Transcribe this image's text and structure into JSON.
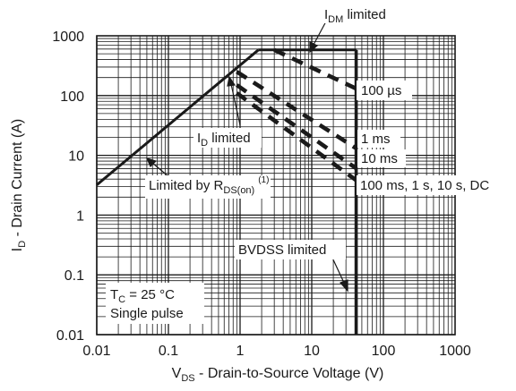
{
  "chart_data": {
    "type": "line",
    "title": "",
    "x_scale": "log",
    "y_scale": "log",
    "xlim": [
      0.01,
      1000
    ],
    "ylim": [
      0.01,
      1000
    ],
    "grid": true,
    "x_ticks": [
      "0.01",
      "0.1",
      "1",
      "10",
      "100",
      "1000"
    ],
    "y_ticks": [
      "0.01",
      "0.1",
      "1",
      "10",
      "100",
      "1000"
    ],
    "xlabel": {
      "main": "V",
      "sub": "DS",
      "rest": " - Drain-to-Source Voltage (V)"
    },
    "ylabel": {
      "main": "I",
      "sub": "D",
      "rest": " - Drain Current (A)"
    },
    "series": [
      {
        "name": "Limited by RDS(on)",
        "style": "solid",
        "x": [
          0.01,
          1.8
        ],
        "y": [
          3.2,
          580
        ]
      },
      {
        "name": "IDM limited",
        "style": "solid",
        "x": [
          1.8,
          42
        ],
        "y": [
          580,
          580
        ]
      },
      {
        "name": "BVDSS limited",
        "style": "solid",
        "x": [
          42,
          42
        ],
        "y": [
          580,
          0.01
        ]
      },
      {
        "name": "100 µs",
        "style": "dashed",
        "x": [
          3,
          42
        ],
        "y": [
          580,
          130
        ]
      },
      {
        "name": "1 ms",
        "style": "dashed",
        "x": [
          0.9,
          42
        ],
        "y": [
          250,
          13
        ]
      },
      {
        "name": "10 ms",
        "style": "dashed",
        "x": [
          0.9,
          42
        ],
        "y": [
          150,
          6
        ]
      },
      {
        "name": "100 ms, 1 s, 10 s, DC",
        "style": "dashed",
        "x": [
          0.9,
          42
        ],
        "y": [
          110,
          3.8
        ]
      }
    ],
    "annotations": {
      "idm": {
        "main": "I",
        "sub": "DM",
        "rest": " limited"
      },
      "us100": "100 µs",
      "idlim": {
        "main": "I",
        "sub": "D",
        "rest": " limited"
      },
      "ms1": "1 ms",
      "ms10": "10 ms",
      "dc": "100 ms, 1 s, 10 s, DC",
      "rds": {
        "main": "Limited by R",
        "sub": "DS(on)",
        "sup": "(1)"
      },
      "bvdss": "BVDSS limited",
      "tc": {
        "main": "T",
        "sub": "C",
        "rest": " = 25 °C"
      },
      "pulse": "Single pulse"
    }
  }
}
